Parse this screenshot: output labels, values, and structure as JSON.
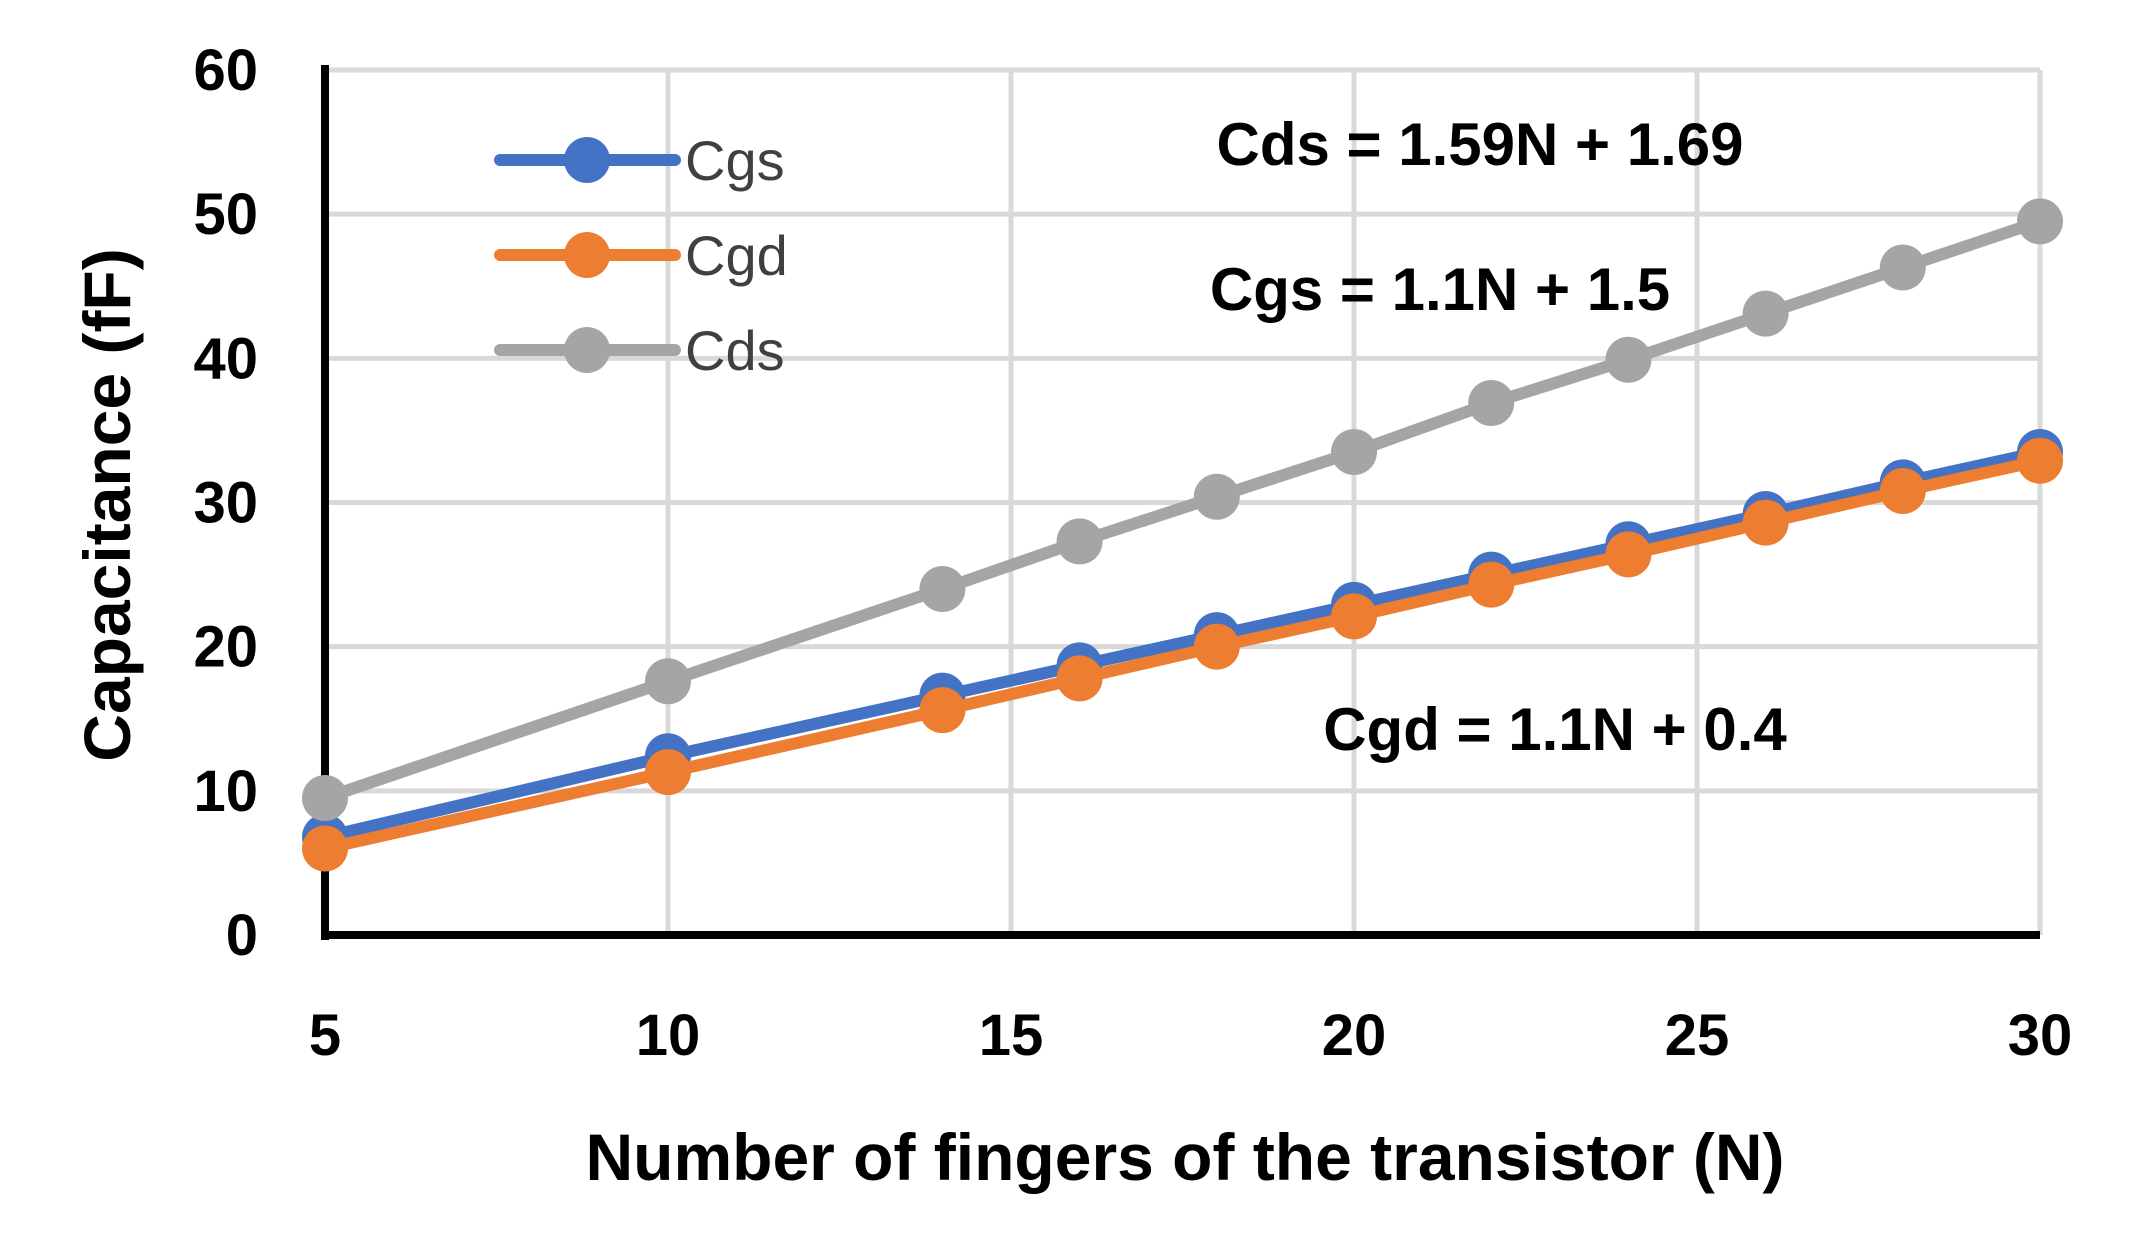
{
  "chart_data": {
    "type": "line",
    "title": "",
    "xlabel": "Number of fingers of the transistor (N)",
    "ylabel": "Capacitance (fF)",
    "xlim": [
      5,
      30
    ],
    "ylim": [
      0,
      60
    ],
    "xticks": [
      5,
      10,
      15,
      20,
      25,
      30
    ],
    "yticks": [
      0,
      10,
      20,
      30,
      40,
      50,
      60
    ],
    "grid": true,
    "legend_position": "top-left",
    "x": [
      5,
      10,
      14,
      16,
      18,
      20,
      22,
      24,
      26,
      28,
      30
    ],
    "series": [
      {
        "name": "Cgs",
        "color": "#4472C4",
        "values": [
          6.8,
          12.4,
          16.6,
          18.7,
          20.8,
          22.9,
          25.0,
          27.1,
          29.2,
          31.4,
          33.5
        ]
      },
      {
        "name": "Cgd",
        "color": "#ED7D31",
        "values": [
          6.0,
          11.3,
          15.6,
          17.8,
          20.0,
          22.1,
          24.3,
          26.4,
          28.6,
          30.8,
          32.9
        ]
      },
      {
        "name": "Cds",
        "color": "#A5A5A5",
        "values": [
          9.5,
          17.6,
          24.0,
          27.3,
          30.4,
          33.5,
          36.9,
          39.9,
          43.1,
          46.3,
          49.5
        ]
      }
    ],
    "annotations": [
      {
        "id": "cds-eq",
        "text": "Cds = 1.59N + 1.69"
      },
      {
        "id": "cgs-eq",
        "text": "Cgs = 1.1N + 1.5"
      },
      {
        "id": "cgd-eq",
        "text": "Cgd = 1.1N + 0.4"
      }
    ]
  }
}
